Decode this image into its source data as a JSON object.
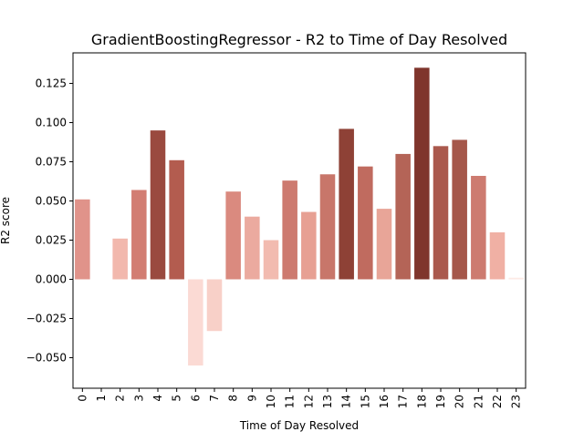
{
  "chart_data": {
    "type": "bar",
    "title": "GradientBoostingRegressor - R2 to Time of Day Resolved",
    "xlabel": "Time of Day Resolved",
    "ylabel": "R2 score",
    "categories": [
      "0",
      "1",
      "2",
      "3",
      "4",
      "5",
      "6",
      "7",
      "8",
      "9",
      "10",
      "11",
      "12",
      "13",
      "14",
      "15",
      "16",
      "17",
      "18",
      "19",
      "20",
      "21",
      "22",
      "23"
    ],
    "values": [
      0.051,
      0.0,
      0.026,
      0.057,
      0.095,
      0.076,
      -0.055,
      -0.033,
      0.056,
      0.04,
      0.025,
      0.063,
      0.043,
      0.067,
      0.096,
      0.072,
      0.045,
      0.08,
      0.135,
      0.085,
      0.089,
      0.066,
      0.03,
      0.001
    ],
    "colors": [
      "#e0938a",
      "#ffffff",
      "#f2b8ad",
      "#d27d72",
      "#9a4a3f",
      "#b35c4f",
      "#fbdad4",
      "#f8d0c8",
      "#da8a7f",
      "#ebaa9f",
      "#f2bbb0",
      "#cd7a6f",
      "#e7a093",
      "#c8766a",
      "#8e4136",
      "#c06b5f",
      "#e8a598",
      "#b46457",
      "#7f352c",
      "#aa594d",
      "#a5574a",
      "#cd7b70",
      "#f0b0a4",
      "#fdeae5"
    ],
    "yticks": [
      -0.05,
      -0.025,
      0.0,
      0.025,
      0.05,
      0.075,
      0.1,
      0.125
    ],
    "ytick_labels": [
      "−0.050",
      "−0.025",
      "0.000",
      "0.025",
      "0.050",
      "0.075",
      "0.100",
      "0.125"
    ],
    "ylim": [
      -0.0695,
      0.1445
    ],
    "grid": false,
    "legend": "none"
  }
}
